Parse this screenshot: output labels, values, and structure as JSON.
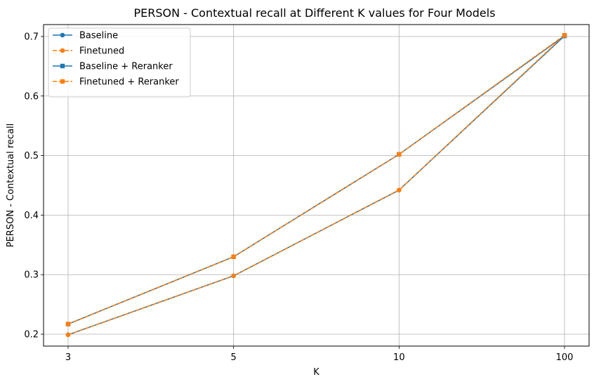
{
  "chart_data": {
    "type": "line",
    "title": "PERSON - Contextual recall at Different K values for Four Models",
    "xlabel": "K",
    "ylabel": "PERSON - Contextual recall",
    "categories": [
      "3",
      "5",
      "10",
      "100"
    ],
    "ylim": [
      0.18,
      0.72
    ],
    "yticks": [
      0.2,
      0.3,
      0.4,
      0.5,
      0.6,
      0.7
    ],
    "ytick_labels": [
      "0.2",
      "0.3",
      "0.4",
      "0.5",
      "0.6",
      "0.7"
    ],
    "grid": true,
    "legend_position": "top-left",
    "series": [
      {
        "name": "Baseline",
        "values": [
          0.199,
          0.298,
          0.442,
          0.701
        ],
        "color": "#1f77b4",
        "dash": "solid",
        "marker": "circle"
      },
      {
        "name": "Finetuned",
        "values": [
          0.199,
          0.298,
          0.442,
          0.702
        ],
        "color": "#ff7f0e",
        "dash": "dashed",
        "marker": "circle"
      },
      {
        "name": "Baseline + Reranker",
        "values": [
          0.217,
          0.33,
          0.502,
          0.701
        ],
        "color": "#1f77b4",
        "dash": "solid",
        "marker": "square"
      },
      {
        "name": "Finetuned + Reranker",
        "values": [
          0.217,
          0.33,
          0.502,
          0.702
        ],
        "color": "#ff7f0e",
        "dash": "dashed",
        "marker": "square"
      }
    ]
  }
}
